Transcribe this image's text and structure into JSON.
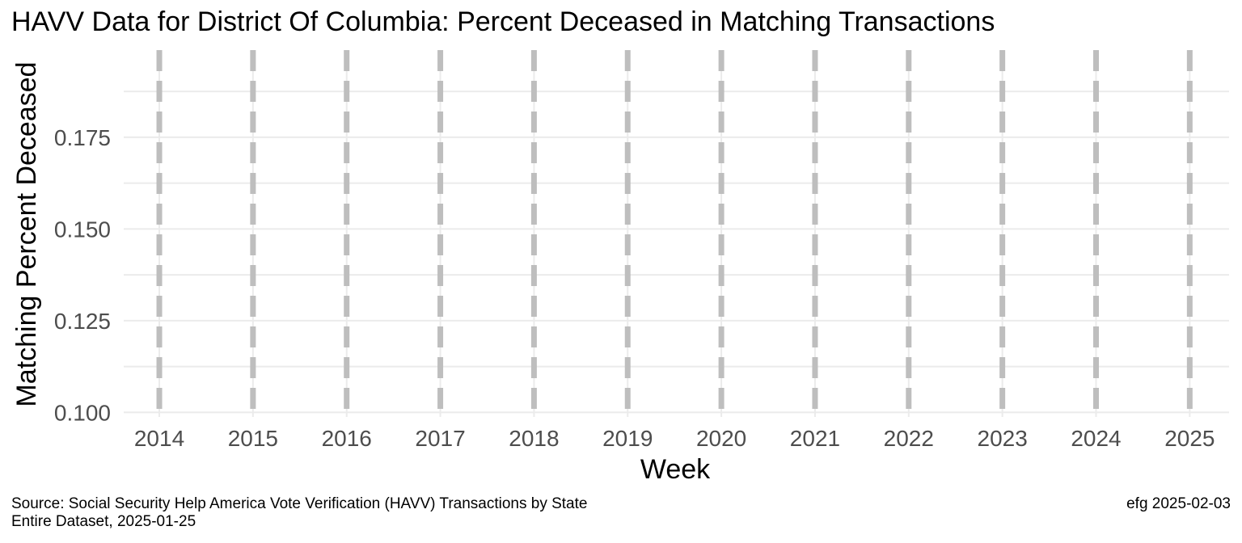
{
  "chart_data": {
    "type": "line",
    "title": "HAVV Data for District Of Columbia:  Percent Deceased in Matching Transactions",
    "xlabel": "Week",
    "ylabel": "Matching Percent Deceased",
    "x_ticks": [
      "2014",
      "2015",
      "2016",
      "2017",
      "2018",
      "2019",
      "2020",
      "2021",
      "2022",
      "2023",
      "2024",
      "2025"
    ],
    "y_ticks": [
      0.1,
      0.125,
      0.15,
      0.175
    ],
    "y_tick_labels": [
      "0.100",
      "0.125",
      "0.150",
      "0.175"
    ],
    "ylim": [
      0.09875,
      0.19875
    ],
    "xlim": [
      2013.62,
      2025.42
    ],
    "year_start_lines": [
      2014,
      2015,
      2016,
      2017,
      2018,
      2019,
      2020,
      2021,
      2022,
      2023,
      2024,
      2025
    ],
    "year_line_style": "dashed",
    "year_line_color": "#bebebe",
    "grid": true,
    "grid_color": "#ebebeb",
    "series": []
  },
  "caption": {
    "source": "Source:  Social Security Help America Vote Verification (HAVV) Transactions by State",
    "dataset": "Entire Dataset, 2025-01-25",
    "author": "efg 2025-02-03"
  }
}
